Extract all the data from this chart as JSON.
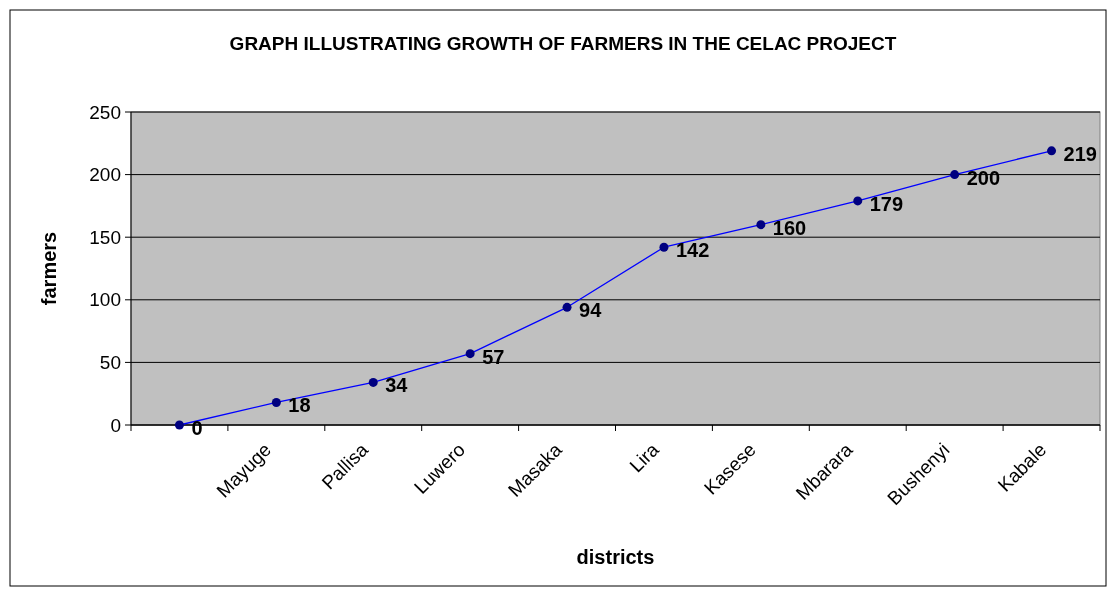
{
  "chart_data": {
    "type": "line",
    "title": "GRAPH ILLUSTRATING GROWTH OF FARMERS IN THE CELAC PROJECT",
    "xlabel": "districts",
    "ylabel": "farmers",
    "categories": [
      null,
      "Mayuge",
      "Pallisa",
      "Luwero",
      "Masaka",
      "Lira",
      "Kasese",
      "Mbarara",
      "Bushenyi",
      "Kabale"
    ],
    "series": [
      {
        "color": "#0000ff",
        "values": [
          0,
          18,
          34,
          57,
          94,
          142,
          160,
          179,
          200,
          219
        ]
      }
    ],
    "ylim": [
      0,
      250
    ],
    "yticks": [
      0,
      50,
      100,
      150,
      200,
      250
    ],
    "grid": "y",
    "marker": "circle",
    "data_labels": true
  }
}
